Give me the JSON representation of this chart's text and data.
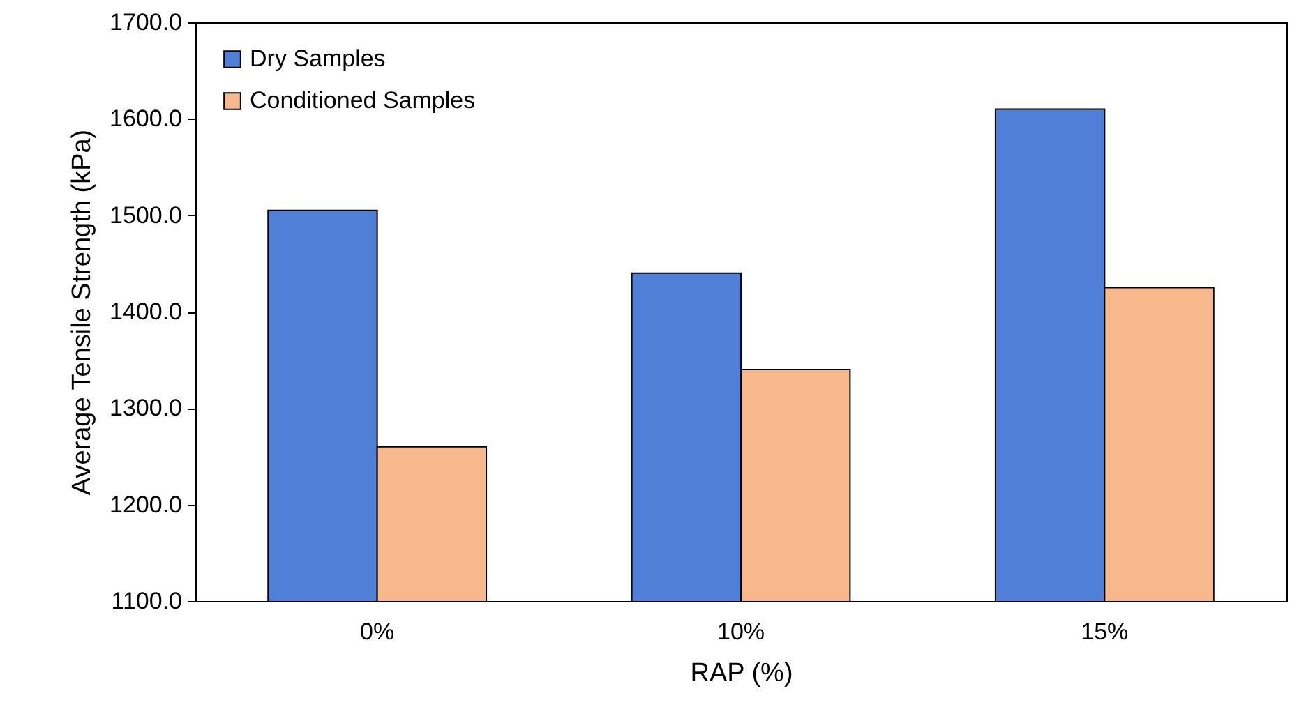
{
  "chart_data": {
    "type": "bar",
    "xlabel": "RAP (%)",
    "ylabel": "Average Tensile Strength (kPa)",
    "categories": [
      "0%",
      "10%",
      "15%"
    ],
    "series": [
      {
        "name": "Dry Samples",
        "color": "#4f7fd6",
        "values": [
          1505,
          1440,
          1610
        ]
      },
      {
        "name": "Conditioned Samples",
        "color": "#f7b98b",
        "values": [
          1260,
          1340,
          1425
        ]
      }
    ],
    "ylim": [
      1100,
      1700
    ],
    "yticks": [
      {
        "value": 1100,
        "label": "1100.0"
      },
      {
        "value": 1200,
        "label": "1200.0"
      },
      {
        "value": 1300,
        "label": "1300.0"
      },
      {
        "value": 1400,
        "label": "1400.0"
      },
      {
        "value": 1500,
        "label": "1500.0"
      },
      {
        "value": 1600,
        "label": "1600.0"
      },
      {
        "value": 1700,
        "label": "1700.0"
      }
    ],
    "grid": false,
    "legend": "top left"
  }
}
